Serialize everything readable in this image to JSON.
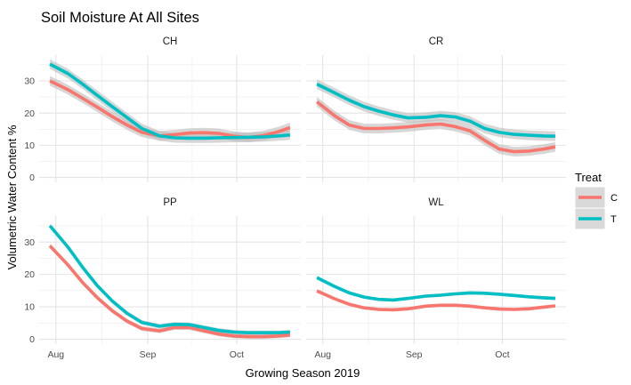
{
  "chart_data": {
    "type": "line",
    "title": "Soil Moisture At All Sites",
    "xlabel": "Growing Season 2019",
    "ylabel": "Volumetric Water Content %",
    "x_ticks": [
      "Aug",
      "Sep",
      "Oct"
    ],
    "y_ticks": [
      0,
      10,
      20,
      30
    ],
    "ylim": [
      -1.5,
      38
    ],
    "legend": {
      "title": "Treat",
      "position": "right",
      "entries": [
        "C",
        "T"
      ]
    },
    "colors": {
      "C": "#F8766D",
      "T": "#00BFC4",
      "ribbon": "#BDBDBD"
    },
    "grid": true,
    "facets": [
      {
        "name": "CH",
        "x": [
          "2019-07-30",
          "2019-08-05",
          "2019-08-10",
          "2019-08-15",
          "2019-08-20",
          "2019-08-25",
          "2019-08-30",
          "2019-09-05",
          "2019-09-10",
          "2019-09-15",
          "2019-09-20",
          "2019-09-25",
          "2019-09-30",
          "2019-10-05",
          "2019-10-10",
          "2019-10-15",
          "2019-10-19"
        ],
        "series": [
          {
            "name": "C",
            "values": [
              30.0,
              27.3,
              24.6,
              21.8,
              18.9,
              16.3,
              14.0,
              12.9,
              13.3,
              13.8,
              13.9,
              13.7,
              12.8,
              12.4,
              13.0,
              14.2,
              15.5
            ],
            "ci": 1.5
          },
          {
            "name": "T",
            "values": [
              35.2,
              32.3,
              29.0,
              25.5,
              22.0,
              18.6,
              15.2,
              12.9,
              12.3,
              12.2,
              12.2,
              12.3,
              12.4,
              12.5,
              12.6,
              12.9,
              13.2
            ],
            "ci": 1.5
          }
        ]
      },
      {
        "name": "CR",
        "x": [
          "2019-07-30",
          "2019-08-05",
          "2019-08-10",
          "2019-08-15",
          "2019-08-20",
          "2019-08-25",
          "2019-08-30",
          "2019-09-05",
          "2019-09-10",
          "2019-09-15",
          "2019-09-20",
          "2019-09-25",
          "2019-09-30",
          "2019-10-05",
          "2019-10-10",
          "2019-10-15",
          "2019-10-19"
        ],
        "series": [
          {
            "name": "C",
            "values": [
              23.5,
              19.2,
              16.3,
              15.2,
              15.2,
              15.4,
              15.7,
              16.3,
              16.6,
              15.8,
              14.5,
              11.5,
              8.8,
              8.0,
              8.2,
              8.8,
              9.5
            ],
            "ci": 1.5
          },
          {
            "name": "T",
            "values": [
              29.0,
              26.3,
              24.0,
              22.0,
              20.6,
              19.4,
              18.5,
              18.7,
              19.2,
              18.8,
              17.5,
              15.2,
              14.0,
              13.4,
              13.1,
              12.9,
              12.8
            ],
            "ci": 1.5
          }
        ]
      },
      {
        "name": "PP",
        "x": [
          "2019-07-30",
          "2019-08-05",
          "2019-08-10",
          "2019-08-15",
          "2019-08-20",
          "2019-08-25",
          "2019-08-30",
          "2019-09-05",
          "2019-09-10",
          "2019-09-15",
          "2019-09-20",
          "2019-09-25",
          "2019-09-30",
          "2019-10-05",
          "2019-10-10",
          "2019-10-15",
          "2019-10-19"
        ],
        "series": [
          {
            "name": "C",
            "values": [
              28.8,
              23.0,
              17.5,
              12.8,
              8.8,
              5.6,
              3.3,
              2.6,
              3.6,
              3.6,
              2.6,
              1.6,
              1.0,
              0.8,
              0.8,
              1.0,
              1.3
            ],
            "ci": 0.7
          },
          {
            "name": "T",
            "values": [
              35.0,
              28.5,
              22.2,
              16.5,
              11.8,
              8.0,
              5.2,
              4.0,
              4.6,
              4.5,
              3.6,
              2.7,
              2.2,
              2.0,
              2.0,
              2.0,
              2.2
            ],
            "ci": 0.7
          }
        ]
      },
      {
        "name": "WL",
        "x": [
          "2019-07-30",
          "2019-08-05",
          "2019-08-10",
          "2019-08-15",
          "2019-08-20",
          "2019-08-25",
          "2019-08-30",
          "2019-09-05",
          "2019-09-10",
          "2019-09-15",
          "2019-09-20",
          "2019-09-25",
          "2019-09-30",
          "2019-10-05",
          "2019-10-10",
          "2019-10-15",
          "2019-10-19"
        ],
        "series": [
          {
            "name": "C",
            "values": [
              14.9,
              12.5,
              10.8,
              9.7,
              9.2,
              9.1,
              9.4,
              10.2,
              10.5,
              10.5,
              10.2,
              9.7,
              9.3,
              9.2,
              9.4,
              9.9,
              10.3
            ],
            "ci": 0.5
          },
          {
            "name": "T",
            "values": [
              19.0,
              16.3,
              14.3,
              13.0,
              12.3,
              12.1,
              12.6,
              13.3,
              13.6,
              14.0,
              14.3,
              14.2,
              13.9,
              13.5,
              13.1,
              12.8,
              12.6
            ],
            "ci": 0.5
          }
        ]
      }
    ]
  }
}
